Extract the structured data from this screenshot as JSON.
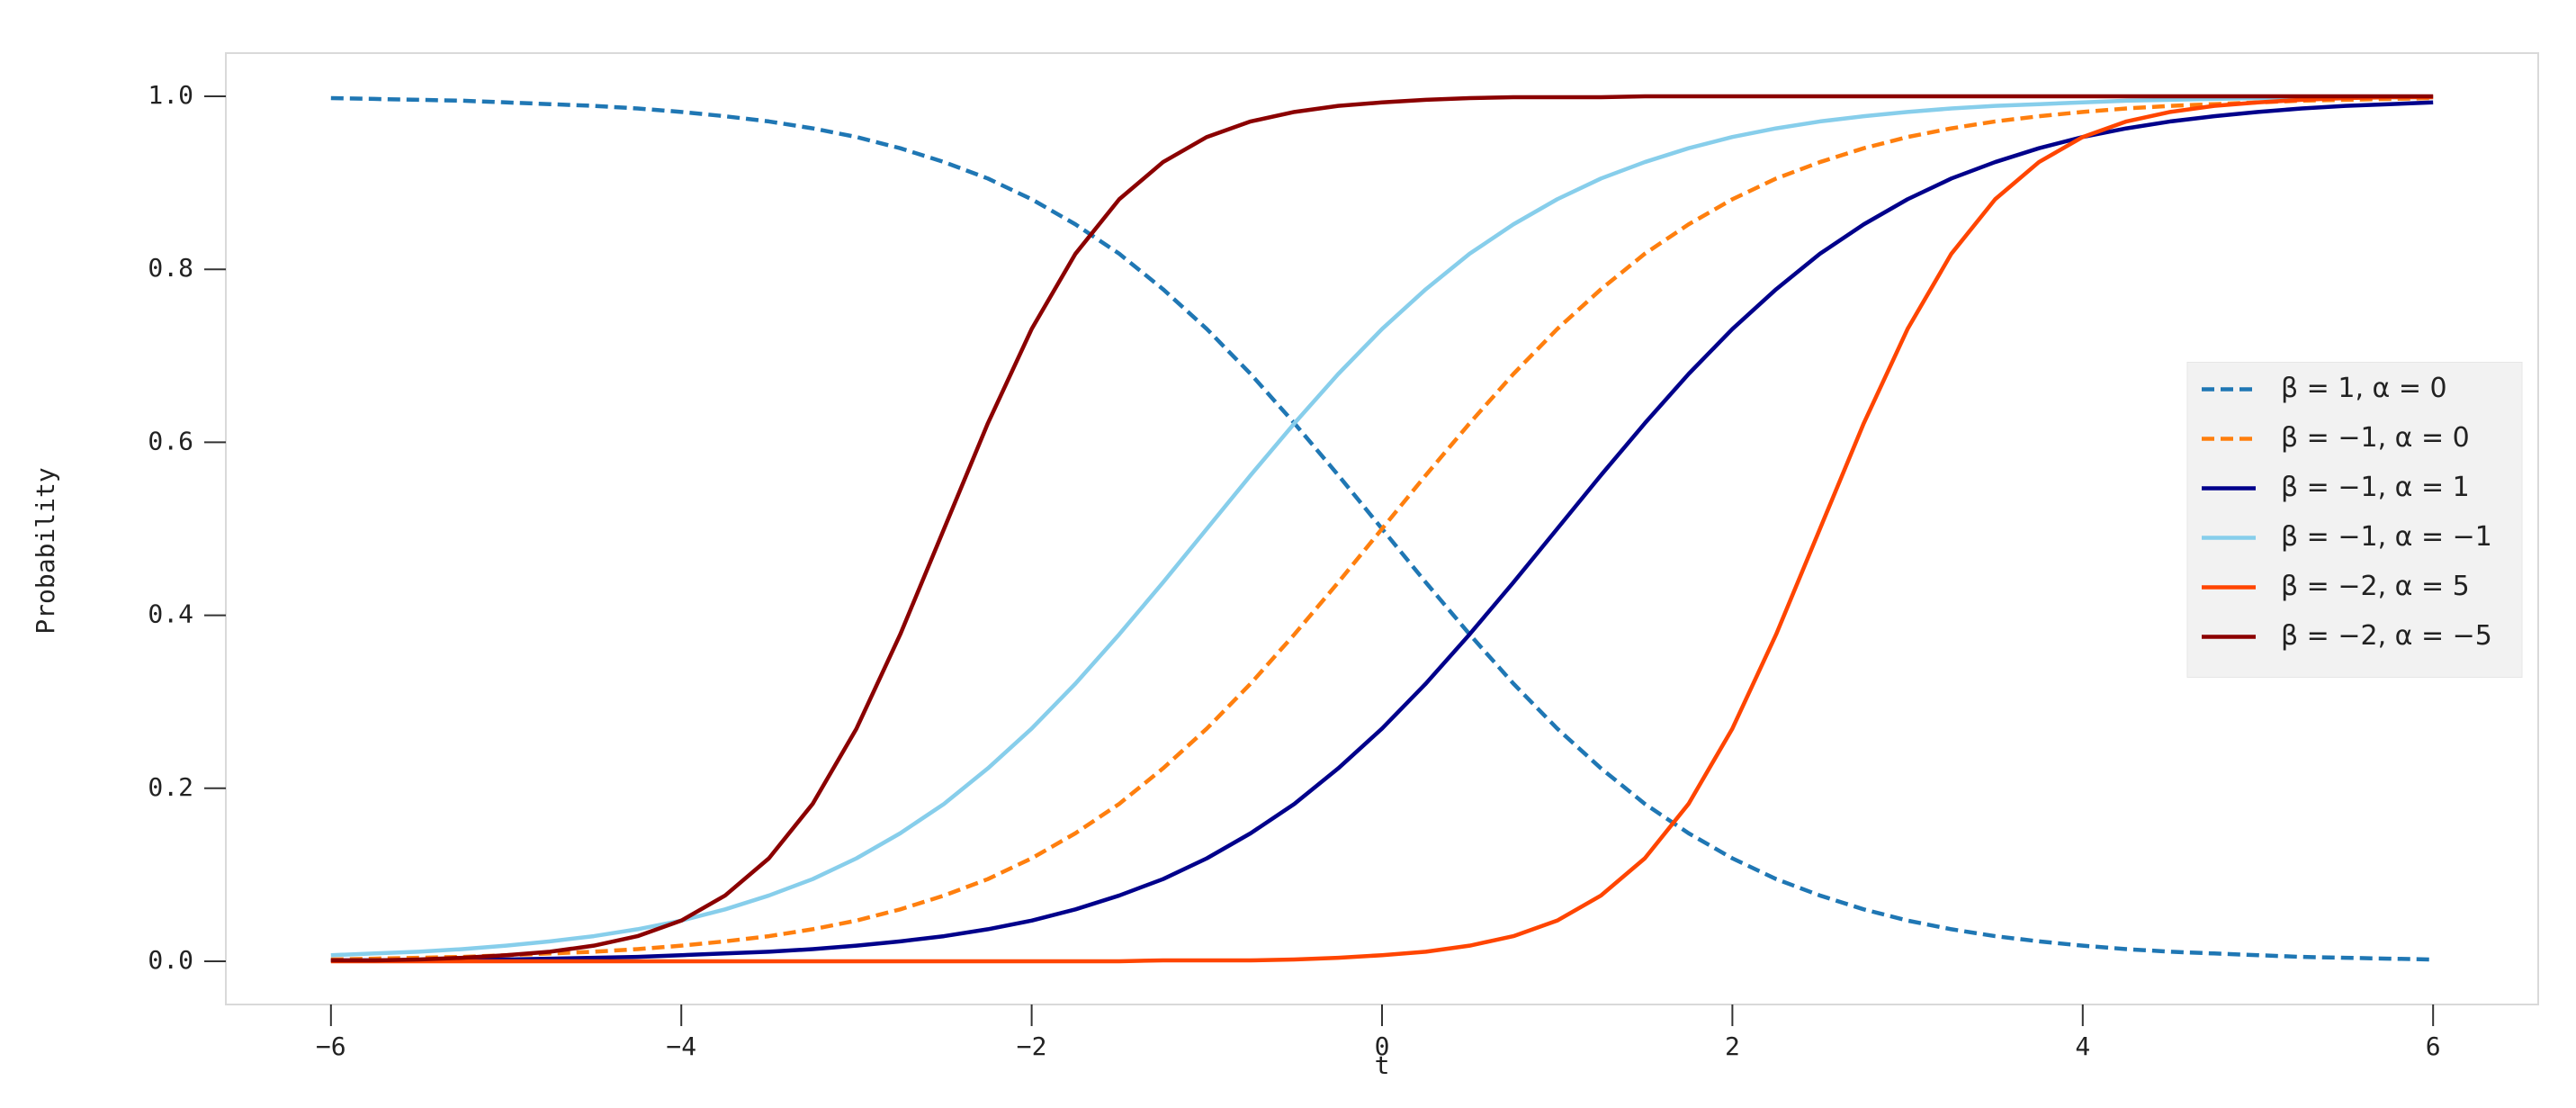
{
  "chart_data": {
    "type": "line",
    "x_label": "t",
    "y_label": "Probability",
    "x": [
      -6,
      -5.75,
      -5.5,
      -5.25,
      -5,
      -4.75,
      -4.5,
      -4.25,
      -4,
      -3.75,
      -3.5,
      -3.25,
      -3,
      -2.75,
      -2.5,
      -2.25,
      -2,
      -1.75,
      -1.5,
      -1.25,
      -1,
      -0.75,
      -0.5,
      -0.25,
      0,
      0.25,
      0.5,
      0.75,
      1,
      1.25,
      1.5,
      1.75,
      2,
      2.25,
      2.5,
      2.75,
      3,
      3.25,
      3.5,
      3.75,
      4,
      4.25,
      4.5,
      4.75,
      5,
      5.25,
      5.5,
      5.75,
      6
    ],
    "series": [
      {
        "name": "β = 1, α = 0",
        "color": "#1f77b4",
        "dashed": true,
        "values": [
          0.998,
          0.997,
          0.996,
          0.995,
          0.993,
          0.991,
          0.989,
          0.986,
          0.982,
          0.977,
          0.971,
          0.963,
          0.953,
          0.94,
          0.924,
          0.905,
          0.881,
          0.852,
          0.818,
          0.777,
          0.731,
          0.679,
          0.622,
          0.562,
          0.5,
          0.438,
          0.378,
          0.321,
          0.269,
          0.223,
          0.182,
          0.148,
          0.119,
          0.095,
          0.076,
          0.06,
          0.047,
          0.037,
          0.029,
          0.023,
          0.018,
          0.014,
          0.011,
          0.009,
          0.007,
          0.005,
          0.004,
          0.003,
          0.002
        ]
      },
      {
        "name": "β = −1, α = 0",
        "color": "#ff7f0e",
        "dashed": true,
        "values": [
          0.002,
          0.003,
          0.004,
          0.005,
          0.007,
          0.009,
          0.011,
          0.014,
          0.018,
          0.023,
          0.029,
          0.037,
          0.047,
          0.06,
          0.076,
          0.095,
          0.119,
          0.148,
          0.182,
          0.223,
          0.269,
          0.321,
          0.378,
          0.438,
          0.5,
          0.562,
          0.622,
          0.679,
          0.731,
          0.777,
          0.818,
          0.852,
          0.881,
          0.905,
          0.924,
          0.94,
          0.953,
          0.963,
          0.971,
          0.977,
          0.982,
          0.986,
          0.989,
          0.991,
          0.993,
          0.995,
          0.996,
          0.997,
          0.998
        ]
      },
      {
        "name": "β = −1, α = 1",
        "color": "#00008b",
        "dashed": false,
        "values": [
          0.001,
          0.001,
          0.001,
          0.002,
          0.002,
          0.003,
          0.004,
          0.005,
          0.007,
          0.009,
          0.011,
          0.014,
          0.018,
          0.023,
          0.029,
          0.037,
          0.047,
          0.06,
          0.076,
          0.095,
          0.119,
          0.148,
          0.182,
          0.223,
          0.269,
          0.321,
          0.378,
          0.438,
          0.5,
          0.562,
          0.622,
          0.679,
          0.731,
          0.777,
          0.818,
          0.852,
          0.881,
          0.905,
          0.924,
          0.94,
          0.953,
          0.963,
          0.971,
          0.977,
          0.982,
          0.986,
          0.989,
          0.991,
          0.993
        ]
      },
      {
        "name": "β = −1, α = −1",
        "color": "#87ceeb",
        "dashed": false,
        "values": [
          0.007,
          0.009,
          0.011,
          0.014,
          0.018,
          0.023,
          0.029,
          0.037,
          0.047,
          0.06,
          0.076,
          0.095,
          0.119,
          0.148,
          0.182,
          0.223,
          0.269,
          0.321,
          0.378,
          0.438,
          0.5,
          0.562,
          0.622,
          0.679,
          0.731,
          0.777,
          0.818,
          0.852,
          0.881,
          0.905,
          0.924,
          0.94,
          0.953,
          0.963,
          0.971,
          0.977,
          0.982,
          0.986,
          0.989,
          0.991,
          0.993,
          0.995,
          0.996,
          0.997,
          0.998,
          0.998,
          0.999,
          0.999,
          0.999
        ]
      },
      {
        "name": "β = −2, α = 5",
        "color": "#ff4500",
        "dashed": false,
        "values": [
          0,
          0,
          0,
          0,
          0,
          0,
          0,
          0,
          0,
          0,
          0,
          0,
          0,
          0,
          0,
          0,
          0,
          0,
          0,
          0.001,
          0.001,
          0.001,
          0.002,
          0.004,
          0.007,
          0.011,
          0.018,
          0.029,
          0.047,
          0.076,
          0.119,
          0.182,
          0.269,
          0.378,
          0.5,
          0.622,
          0.731,
          0.818,
          0.881,
          0.924,
          0.953,
          0.971,
          0.982,
          0.989,
          0.993,
          0.996,
          0.998,
          0.999,
          0.999
        ]
      },
      {
        "name": "β = −2, α = −5",
        "color": "#8b0000",
        "dashed": false,
        "values": [
          0.001,
          0.001,
          0.002,
          0.004,
          0.007,
          0.011,
          0.018,
          0.029,
          0.047,
          0.076,
          0.119,
          0.182,
          0.269,
          0.378,
          0.5,
          0.622,
          0.731,
          0.818,
          0.881,
          0.924,
          0.953,
          0.971,
          0.982,
          0.989,
          0.993,
          0.996,
          0.998,
          0.999,
          0.999,
          0.999,
          1,
          1,
          1,
          1,
          1,
          1,
          1,
          1,
          1,
          1,
          1,
          1,
          1,
          1,
          1,
          1,
          1,
          1,
          1
        ]
      }
    ],
    "xlim": [
      -6.6,
      6.6
    ],
    "ylim": [
      -0.05,
      1.05
    ],
    "xticks": [
      {
        "value": -6,
        "label": "−6"
      },
      {
        "value": -4,
        "label": "−4"
      },
      {
        "value": -2,
        "label": "−2"
      },
      0,
      2,
      4,
      6
    ],
    "yticks": [
      {
        "value": 0,
        "label": "0.0"
      },
      {
        "value": 0.2,
        "label": "0.2"
      },
      {
        "value": 0.4,
        "label": "0.4"
      },
      {
        "value": 0.6,
        "label": "0.6"
      },
      {
        "value": 0.8,
        "label": "0.8"
      },
      {
        "value": 1,
        "label": "1.0"
      }
    ],
    "grid": false,
    "legend": "right"
  }
}
